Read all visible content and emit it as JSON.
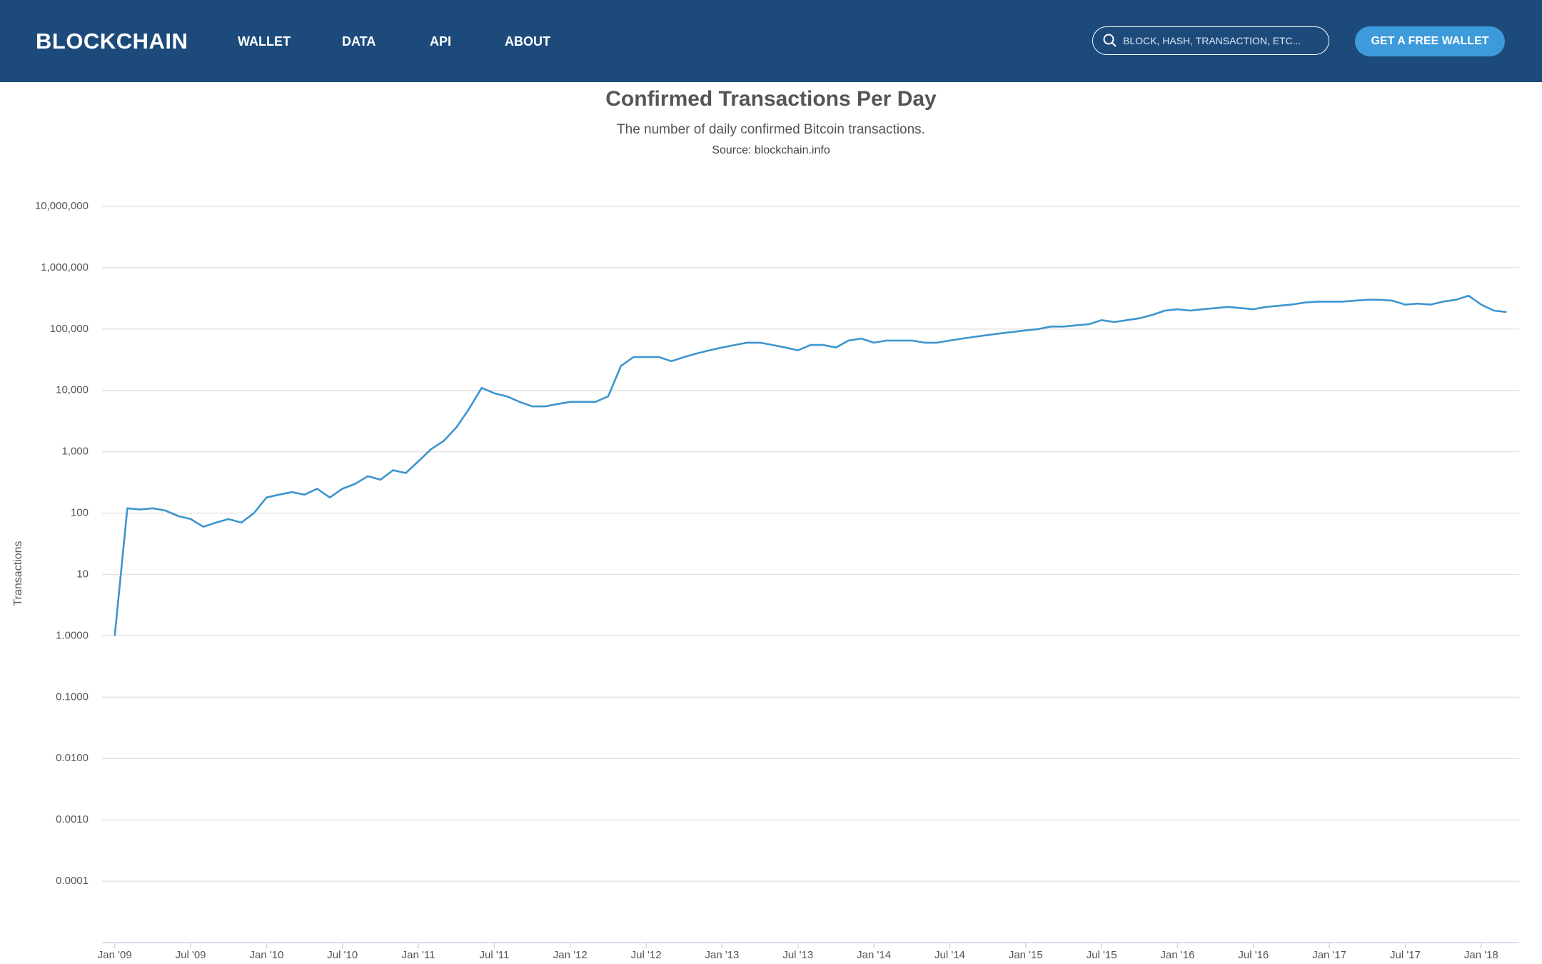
{
  "header": {
    "brand": "BLOCKCHAIN",
    "nav": [
      "WALLET",
      "DATA",
      "API",
      "ABOUT"
    ],
    "search_placeholder": "BLOCK, HASH, TRANSACTION, ETC...",
    "button": "GET A FREE WALLET"
  },
  "chart_data": {
    "type": "line",
    "title": "Confirmed Transactions Per Day",
    "subtitle": "The number of daily confirmed Bitcoin transactions.",
    "source": "Source: blockchain.info",
    "y_label": "Transactions",
    "color": "#3d95cf",
    "log_scale": true,
    "grid": true,
    "x": [
      "2009-01",
      "2009-02",
      "2009-03",
      "2009-04",
      "2009-05",
      "2009-06",
      "2009-07",
      "2009-08",
      "2009-09",
      "2009-10",
      "2009-11",
      "2009-12",
      "2010-01",
      "2010-02",
      "2010-03",
      "2010-04",
      "2010-05",
      "2010-06",
      "2010-07",
      "2010-08",
      "2010-09",
      "2010-10",
      "2010-11",
      "2010-12",
      "2011-01",
      "2011-02",
      "2011-03",
      "2011-04",
      "2011-05",
      "2011-06",
      "2011-07",
      "2011-08",
      "2011-09",
      "2011-10",
      "2011-11",
      "2011-12",
      "2012-01",
      "2012-02",
      "2012-03",
      "2012-04",
      "2012-05",
      "2012-06",
      "2012-07",
      "2012-08",
      "2012-09",
      "2012-10",
      "2012-11",
      "2012-12",
      "2013-01",
      "2013-02",
      "2013-03",
      "2013-04",
      "2013-05",
      "2013-06",
      "2013-07",
      "2013-08",
      "2013-09",
      "2013-10",
      "2013-11",
      "2013-12",
      "2014-01",
      "2014-02",
      "2014-03",
      "2014-04",
      "2014-05",
      "2014-06",
      "2014-07",
      "2014-08",
      "2014-09",
      "2014-10",
      "2014-11",
      "2014-12",
      "2015-01",
      "2015-02",
      "2015-03",
      "2015-04",
      "2015-05",
      "2015-06",
      "2015-07",
      "2015-08",
      "2015-09",
      "2015-10",
      "2015-11",
      "2015-12",
      "2016-01",
      "2016-02",
      "2016-03",
      "2016-04",
      "2016-05",
      "2016-06",
      "2016-07",
      "2016-08",
      "2016-09",
      "2016-10",
      "2016-11",
      "2016-12",
      "2017-01",
      "2017-02",
      "2017-03",
      "2017-04",
      "2017-05",
      "2017-06",
      "2017-07",
      "2017-08",
      "2017-09",
      "2017-10",
      "2017-11",
      "2017-12",
      "2018-01",
      "2018-02",
      "2018-03"
    ],
    "values": [
      1,
      120,
      115,
      120,
      110,
      90,
      80,
      60,
      70,
      80,
      70,
      100,
      180,
      200,
      220,
      200,
      250,
      180,
      250,
      300,
      400,
      350,
      500,
      450,
      700,
      1100,
      1500,
      2500,
      5000,
      11000,
      9000,
      8000,
      6500,
      5500,
      5500,
      6000,
      6500,
      6500,
      6500,
      8000,
      25000,
      35000,
      35000,
      35000,
      30000,
      35000,
      40000,
      45000,
      50000,
      55000,
      60000,
      60000,
      55000,
      50000,
      45000,
      55000,
      55000,
      50000,
      65000,
      70000,
      60000,
      65000,
      65000,
      65000,
      60000,
      60000,
      65000,
      70000,
      75000,
      80000,
      85000,
      90000,
      95000,
      100000,
      110000,
      110000,
      115000,
      120000,
      140000,
      130000,
      140000,
      150000,
      170000,
      200000,
      210000,
      200000,
      210000,
      220000,
      230000,
      220000,
      210000,
      230000,
      240000,
      250000,
      270000,
      280000,
      280000,
      280000,
      290000,
      300000,
      300000,
      290000,
      250000,
      260000,
      250000,
      280000,
      300000,
      350000,
      250000,
      200000,
      190000
    ],
    "xlim": [
      "2008-12",
      "2018-04"
    ],
    "xticks": [
      {
        "value": "2009-01",
        "label": "Jan '09"
      },
      {
        "value": "2009-07",
        "label": "Jul '09"
      },
      {
        "value": "2010-01",
        "label": "Jan '10"
      },
      {
        "value": "2010-07",
        "label": "Jul '10"
      },
      {
        "value": "2011-01",
        "label": "Jan '11"
      },
      {
        "value": "2011-07",
        "label": "Jul '11"
      },
      {
        "value": "2012-01",
        "label": "Jan '12"
      },
      {
        "value": "2012-07",
        "label": "Jul '12"
      },
      {
        "value": "2013-01",
        "label": "Jan '13"
      },
      {
        "value": "2013-07",
        "label": "Jul '13"
      },
      {
        "value": "2014-01",
        "label": "Jan '14"
      },
      {
        "value": "2014-07",
        "label": "Jul '14"
      },
      {
        "value": "2015-01",
        "label": "Jan '15"
      },
      {
        "value": "2015-07",
        "label": "Jul '15"
      },
      {
        "value": "2016-01",
        "label": "Jan '16"
      },
      {
        "value": "2016-07",
        "label": "Jul '16"
      },
      {
        "value": "2017-01",
        "label": "Jan '17"
      },
      {
        "value": "2017-07",
        "label": "Jul '17"
      },
      {
        "value": "2018-01",
        "label": "Jan '18"
      }
    ],
    "ylim": [
      1e-05,
      10000000
    ],
    "yticks": [
      {
        "value": 10000000,
        "label": "10,000,000"
      },
      {
        "value": 1000000,
        "label": "1,000,000"
      },
      {
        "value": 100000,
        "label": "100,000"
      },
      {
        "value": 10000,
        "label": "10,000"
      },
      {
        "value": 1000,
        "label": "1,000"
      },
      100,
      10,
      {
        "value": 1,
        "label": "1.0000"
      },
      {
        "value": 0.1,
        "label": "0.1000"
      },
      {
        "value": 0.01,
        "label": "0.0100"
      },
      {
        "value": 0.001,
        "label": "0.0010"
      },
      0.0001
    ]
  }
}
